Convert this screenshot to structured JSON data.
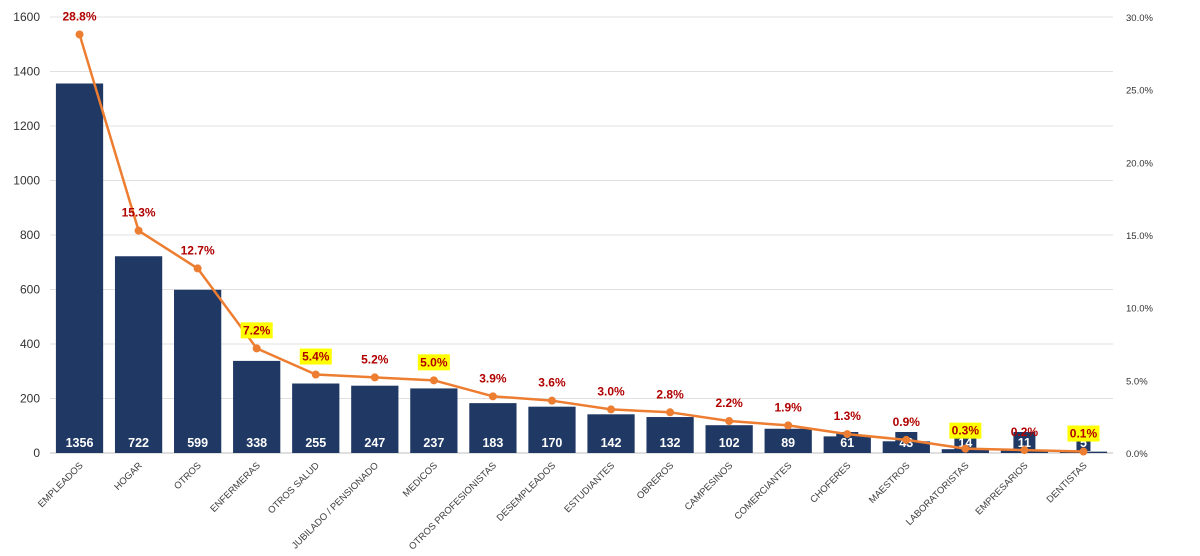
{
  "chart_data": {
    "type": "bar",
    "title": "",
    "xlabel": "",
    "ylabel": "",
    "ylim": [
      0,
      1600
    ],
    "yticks": [
      0,
      200,
      400,
      600,
      800,
      1000,
      1200,
      1400,
      1600
    ],
    "y2lim": [
      0,
      30
    ],
    "y2ticks": [
      "0.0%",
      "5.0%",
      "10.0%",
      "15.0%",
      "20.0%",
      "25.0%",
      "30.0%"
    ],
    "grid": true,
    "categories": [
      "EMPLEADOS",
      "HOGAR",
      "OTROS",
      "ENFERMERAS",
      "OTROS SALUD",
      "JUBILADO / PENSIONADO",
      "MEDICOS",
      "OTROS PROFESIONISTAS",
      "DESEMPLEADOS",
      "ESTUDIANTES",
      "OBREROS",
      "CAMPESINOS",
      "COMERCIANTES",
      "CHOFERES",
      "MAESTROS",
      "LABORATORISTAS",
      "EMPRESARIOS",
      "DENTISTAS"
    ],
    "series": [
      {
        "type": "bar",
        "axis": "left",
        "color": "#1f3864",
        "values": [
          1356,
          722,
          599,
          338,
          255,
          247,
          237,
          183,
          170,
          142,
          132,
          102,
          89,
          61,
          43,
          14,
          11,
          5
        ],
        "labels": [
          "1356",
          "722",
          "599",
          "338",
          "255",
          "247",
          "237",
          "183",
          "170",
          "142",
          "132",
          "102",
          "89",
          "61",
          "43",
          "14",
          "11",
          "5"
        ]
      },
      {
        "type": "line",
        "axis": "right",
        "color": "#ed7d31",
        "values": [
          28.8,
          15.3,
          12.7,
          7.2,
          5.4,
          5.2,
          5.0,
          3.9,
          3.6,
          3.0,
          2.8,
          2.2,
          1.9,
          1.3,
          0.9,
          0.3,
          0.2,
          0.1
        ],
        "labels": [
          "28.8%",
          "15.3%",
          "12.7%",
          "7.2%",
          "5.4%",
          "5.2%",
          "5.0%",
          "3.9%",
          "3.6%",
          "3.0%",
          "2.8%",
          "2.2%",
          "1.9%",
          "1.3%",
          "0.9%",
          "0.3%",
          "0.2%",
          "0.1%"
        ],
        "highlighted": [
          false,
          false,
          false,
          true,
          true,
          false,
          true,
          false,
          false,
          false,
          false,
          false,
          false,
          false,
          false,
          true,
          false,
          true
        ],
        "label_color": "#b00000",
        "highlight_color": "#ffff00"
      }
    ]
  }
}
